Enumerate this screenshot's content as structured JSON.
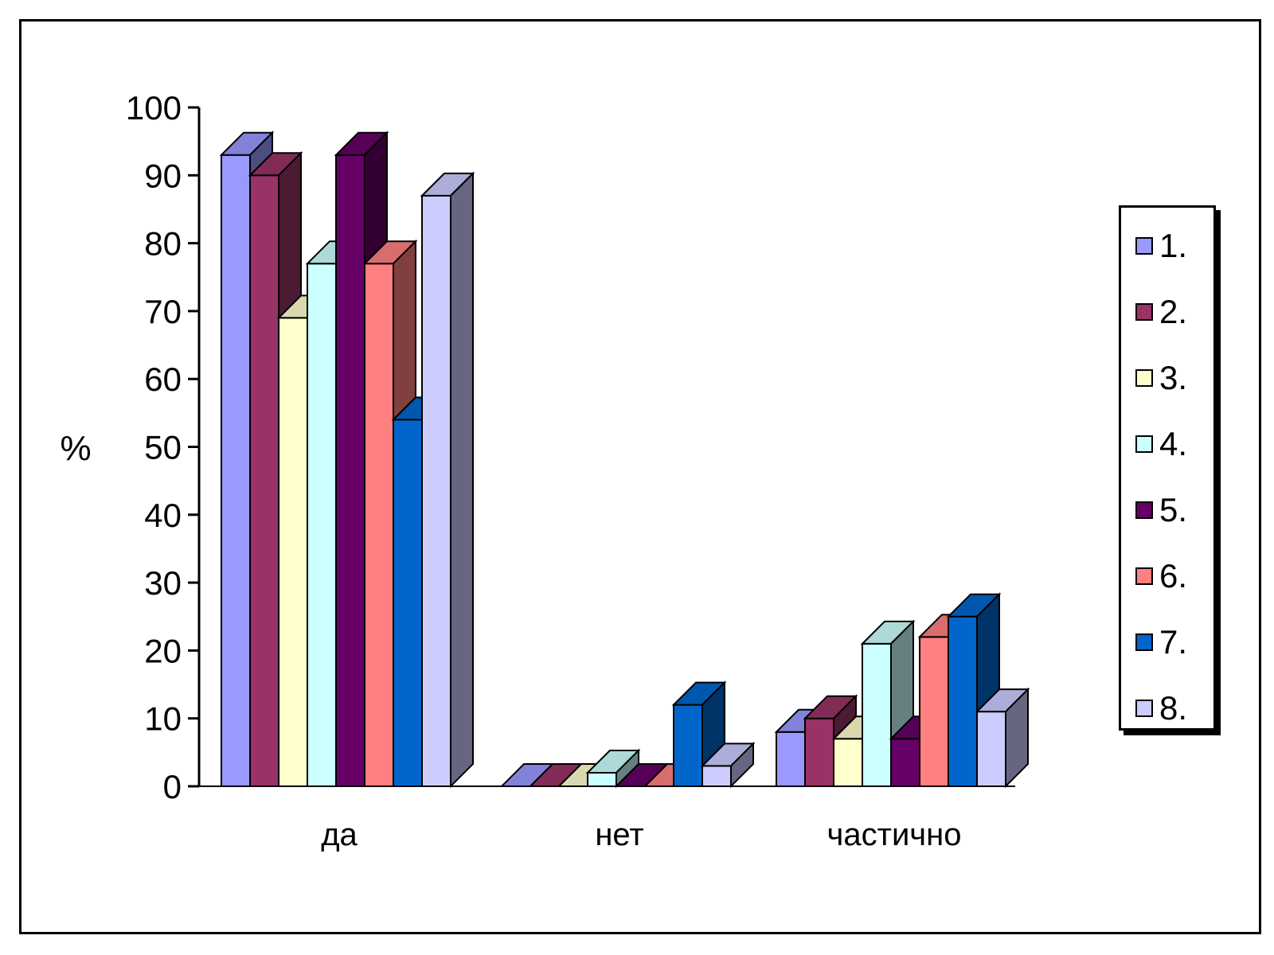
{
  "chart_data": {
    "type": "bar",
    "style": "3d-clustered-column",
    "title": "",
    "xlabel": "",
    "ylabel": "%",
    "ylim": [
      0,
      100
    ],
    "yticks": [
      0,
      10,
      20,
      30,
      40,
      50,
      60,
      70,
      80,
      90,
      100
    ],
    "categories": [
      "да",
      "нет",
      "частично"
    ],
    "legend_position": "right",
    "series": [
      {
        "name": "1.",
        "color": "#9999ff",
        "values": [
          93,
          0,
          8
        ]
      },
      {
        "name": "2.",
        "color": "#993366",
        "values": [
          90,
          0,
          10
        ]
      },
      {
        "name": "3.",
        "color": "#ffffcc",
        "values": [
          69,
          0,
          7
        ]
      },
      {
        "name": "4.",
        "color": "#ccffff",
        "values": [
          77,
          2,
          21
        ]
      },
      {
        "name": "5.",
        "color": "#660066",
        "values": [
          93,
          0,
          7
        ]
      },
      {
        "name": "6.",
        "color": "#ff8080",
        "values": [
          77,
          0,
          22
        ]
      },
      {
        "name": "7.",
        "color": "#0066cc",
        "values": [
          54,
          12,
          25
        ]
      },
      {
        "name": "8.",
        "color": "#ccccff",
        "values": [
          87,
          3,
          11
        ]
      }
    ]
  }
}
